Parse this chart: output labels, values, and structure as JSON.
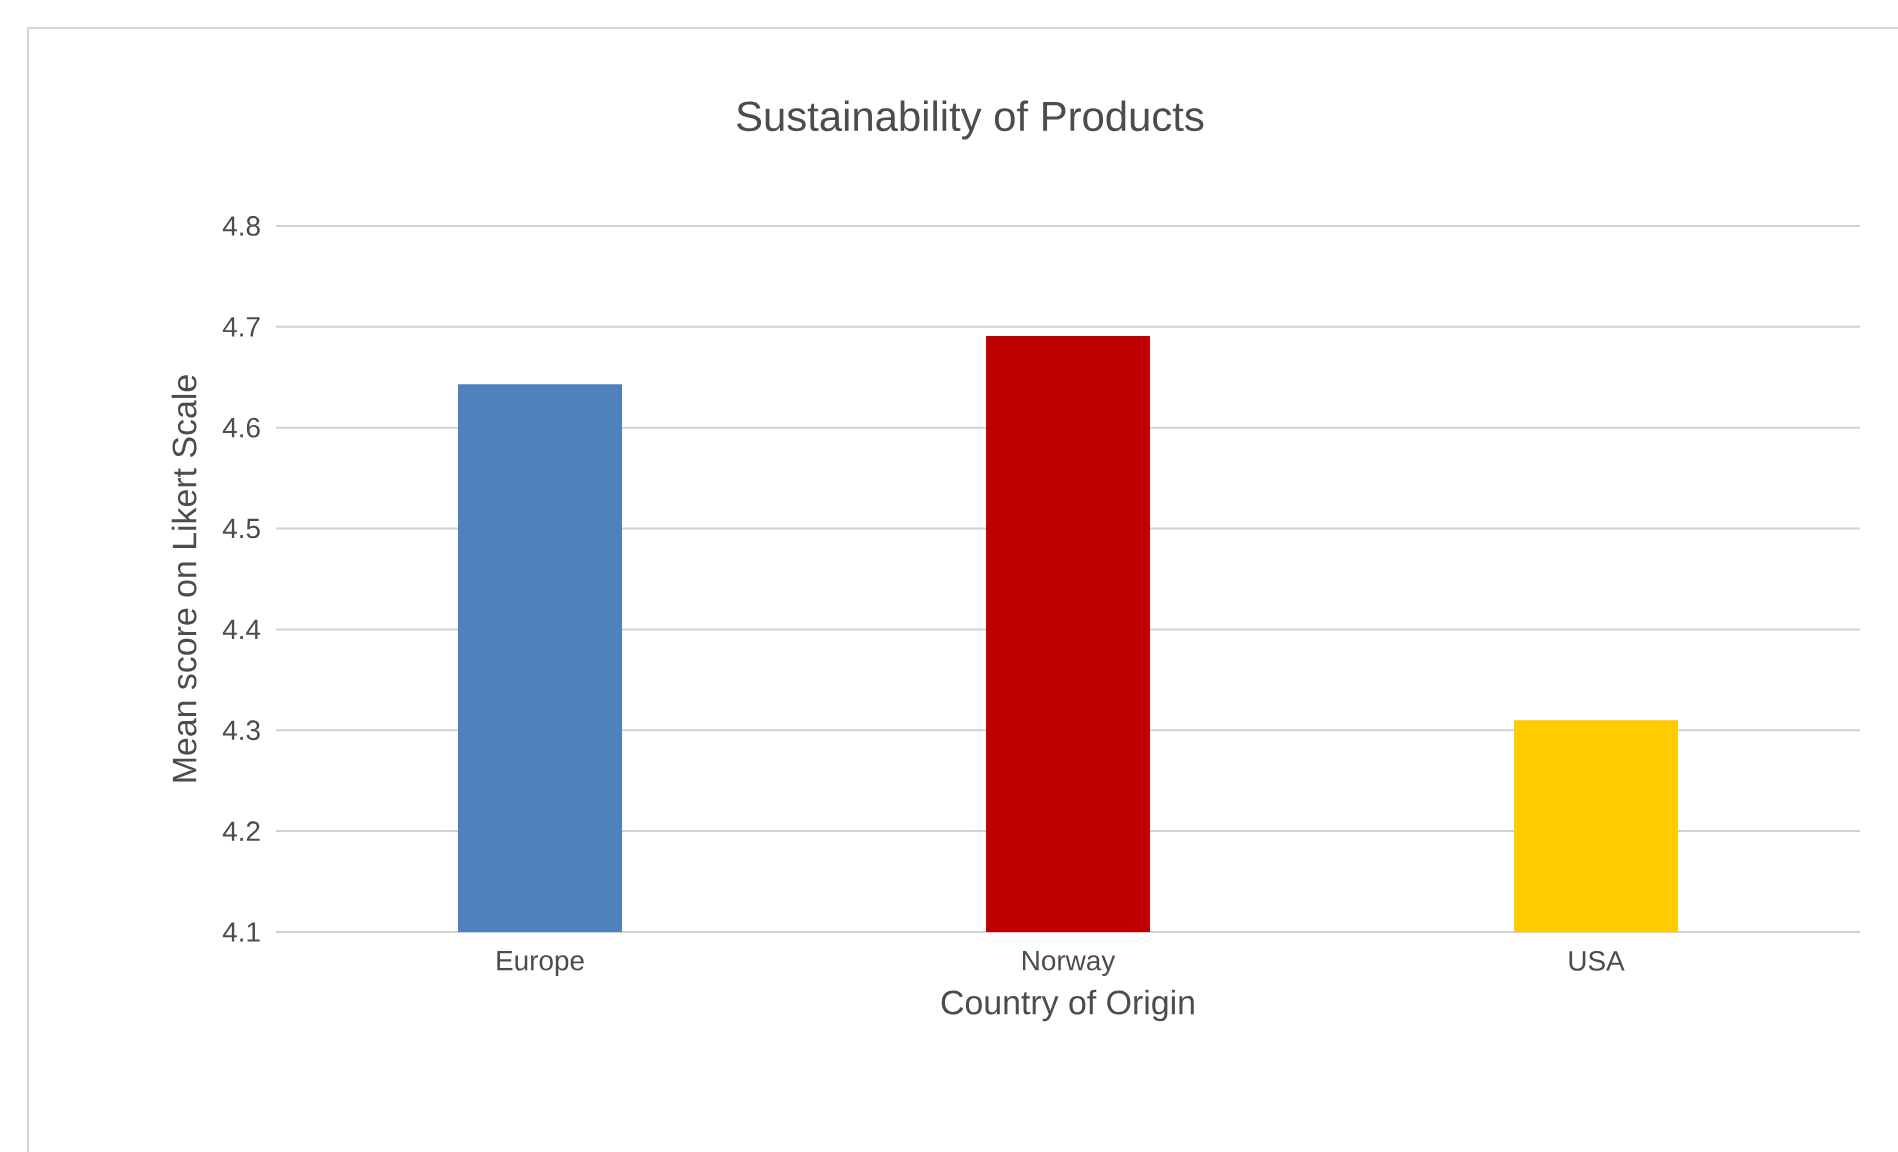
{
  "chart_data": {
    "type": "bar",
    "title": "Sustainability of Products",
    "xlabel": "Country of Origin",
    "ylabel": "Mean score on Likert Scale",
    "categories": [
      "Europe",
      "Norway",
      "USA"
    ],
    "values": [
      4.643,
      4.691,
      4.31
    ],
    "colors": [
      "#4f81bd",
      "#c00000",
      "#ffcc00"
    ],
    "ylim": [
      4.1,
      4.8
    ],
    "yticks": [
      4.1,
      4.2,
      4.3,
      4.4,
      4.5,
      4.6,
      4.7,
      4.8
    ],
    "grid": "y"
  }
}
